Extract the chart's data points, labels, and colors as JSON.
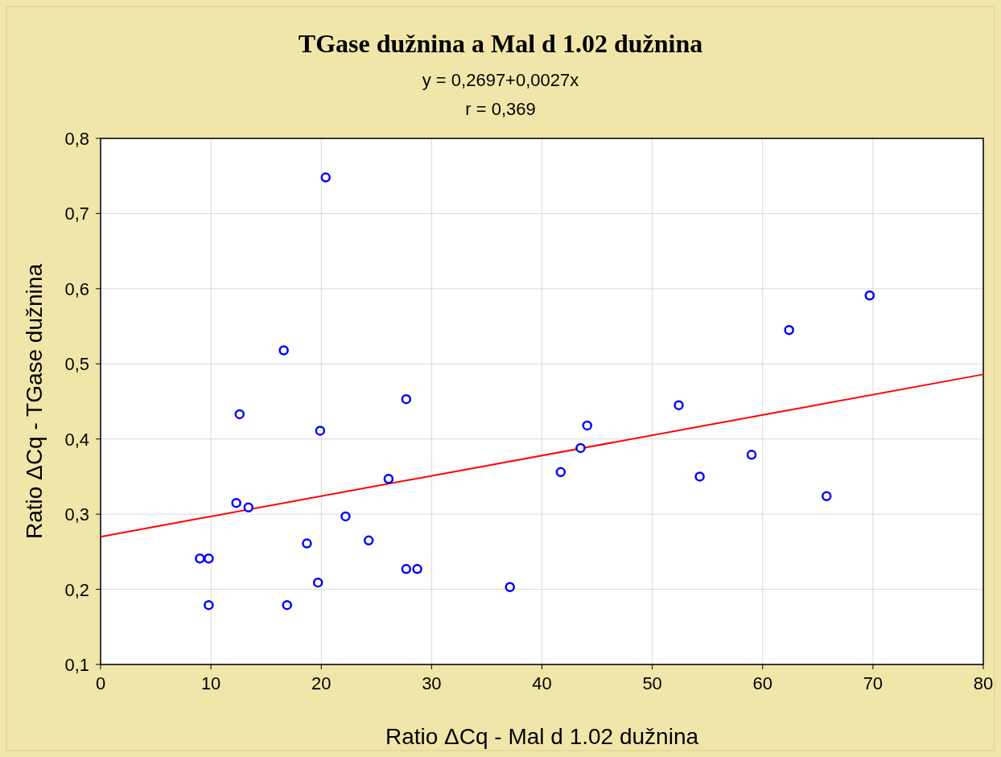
{
  "chart_data": {
    "type": "scatter",
    "title": "TGase dužnina a Mal d 1.02 dužnina",
    "subtitle": "y = 0,2697+0,0027x",
    "annotations": [
      "r = 0,369"
    ],
    "xlabel": "Ratio ΔCq - Mal d 1.02 dužnina",
    "ylabel": "Ratio ΔCq - TGase dužnina",
    "xlim": [
      0,
      80
    ],
    "ylim": [
      0.1,
      0.8
    ],
    "xticks": [
      0,
      10,
      20,
      30,
      40,
      50,
      60,
      70,
      80
    ],
    "yticks": [
      {
        "value": 0.1,
        "label": "0,1"
      },
      {
        "value": 0.2,
        "label": "0,2"
      },
      {
        "value": 0.3,
        "label": "0,3"
      },
      {
        "value": 0.4,
        "label": "0,4"
      },
      {
        "value": 0.5,
        "label": "0,5"
      },
      {
        "value": 0.6,
        "label": "0,6"
      },
      {
        "value": 0.7,
        "label": "0,7"
      },
      {
        "value": 0.8,
        "label": "0,8"
      }
    ],
    "grid": true,
    "series": [
      {
        "color": "#0000ff",
        "marker": "circle",
        "x": [
          9.0,
          9.8,
          9.8,
          12.3,
          12.6,
          13.4,
          16.6,
          16.9,
          18.7,
          19.7,
          19.9,
          20.4,
          22.2,
          24.3,
          26.1,
          27.7,
          27.7,
          28.7,
          37.1,
          41.7,
          43.5,
          44.1,
          52.4,
          54.3,
          59.0,
          62.4,
          65.8,
          69.7
        ],
        "values": [
          0.241,
          0.241,
          0.179,
          0.315,
          0.433,
          0.309,
          0.518,
          0.179,
          0.261,
          0.209,
          0.411,
          0.748,
          0.297,
          0.265,
          0.347,
          0.453,
          0.227,
          0.227,
          0.203,
          0.356,
          0.388,
          0.418,
          0.445,
          0.35,
          0.379,
          0.545,
          0.324,
          0.591
        ]
      },
      {
        "type": "line",
        "color": "#ff0000",
        "x": [
          0,
          80
        ],
        "values": [
          0.27,
          0.486
        ],
        "marker": "none"
      }
    ]
  }
}
